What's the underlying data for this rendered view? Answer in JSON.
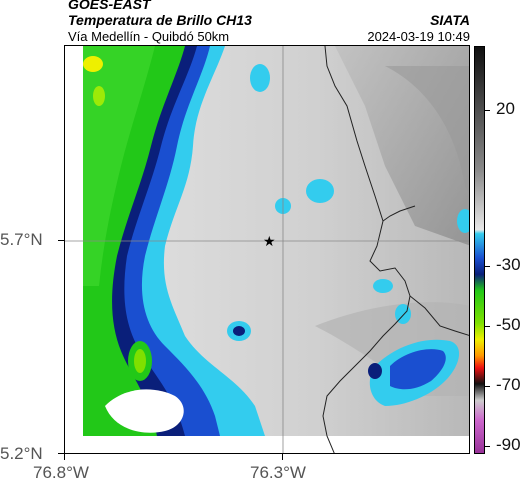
{
  "header": {
    "source": "GOES-EAST",
    "product": "Temperatura de Brillo CH13",
    "organization": "SIATA",
    "location": "Vía Medellín - Quibdó 50km",
    "datetime": "2024-03-19 10:49"
  },
  "axes": {
    "y_ticks": [
      "5.7°N",
      "5.2°N"
    ],
    "x_ticks": [
      "76.8°W",
      "76.3°W"
    ]
  },
  "colorbar": {
    "ticks": [
      "20",
      "-30",
      "-50",
      "-70",
      "-90"
    ]
  },
  "marker": {
    "name": "star-marker",
    "lat": 5.7,
    "lon": -76.32
  },
  "colors": {
    "cloud_gray": "#d8d8d8",
    "cyan": "#33ccee",
    "blue": "#1a4fd0",
    "navy": "#0a1f7a",
    "green": "#22c818",
    "yellow": "#eef000"
  }
}
